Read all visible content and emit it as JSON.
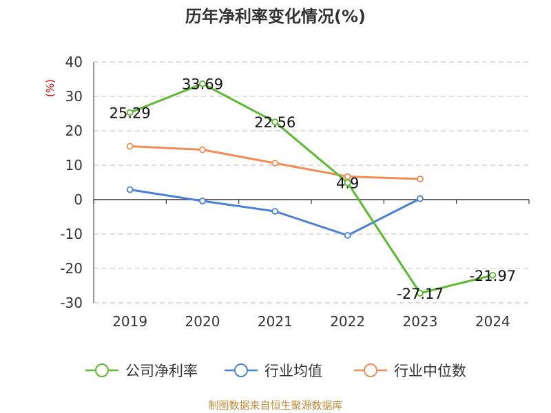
{
  "chart_data": {
    "type": "line",
    "title": "历年净利率变化情况(%)",
    "ylabel": "(%)",
    "xlabel": "",
    "categories": [
      "2019",
      "2020",
      "2021",
      "2022",
      "2023",
      "2024"
    ],
    "ylim": [
      -30,
      40
    ],
    "yticks": [
      40,
      30,
      20,
      10,
      0,
      -10,
      -20,
      -30
    ],
    "grid": true,
    "legend_position": "bottom",
    "series": [
      {
        "name": "公司净利率",
        "color": "#5cb82e",
        "values": [
          25.29,
          33.69,
          22.56,
          4.9,
          -27.17,
          -21.97
        ],
        "labels": [
          "25.29",
          "33.69",
          "22.56",
          "4.9",
          "-27.17",
          "-21.97"
        ]
      },
      {
        "name": "行业均值",
        "color": "#4a7fd6",
        "values": [
          2.9,
          -0.4,
          -3.4,
          -10.4,
          0.3,
          null
        ]
      },
      {
        "name": "行业中位数",
        "color": "#f28c55",
        "values": [
          15.5,
          14.5,
          10.6,
          6.7,
          6.0,
          null
        ]
      }
    ],
    "source": "制图数据来自恒生聚源数据库"
  }
}
